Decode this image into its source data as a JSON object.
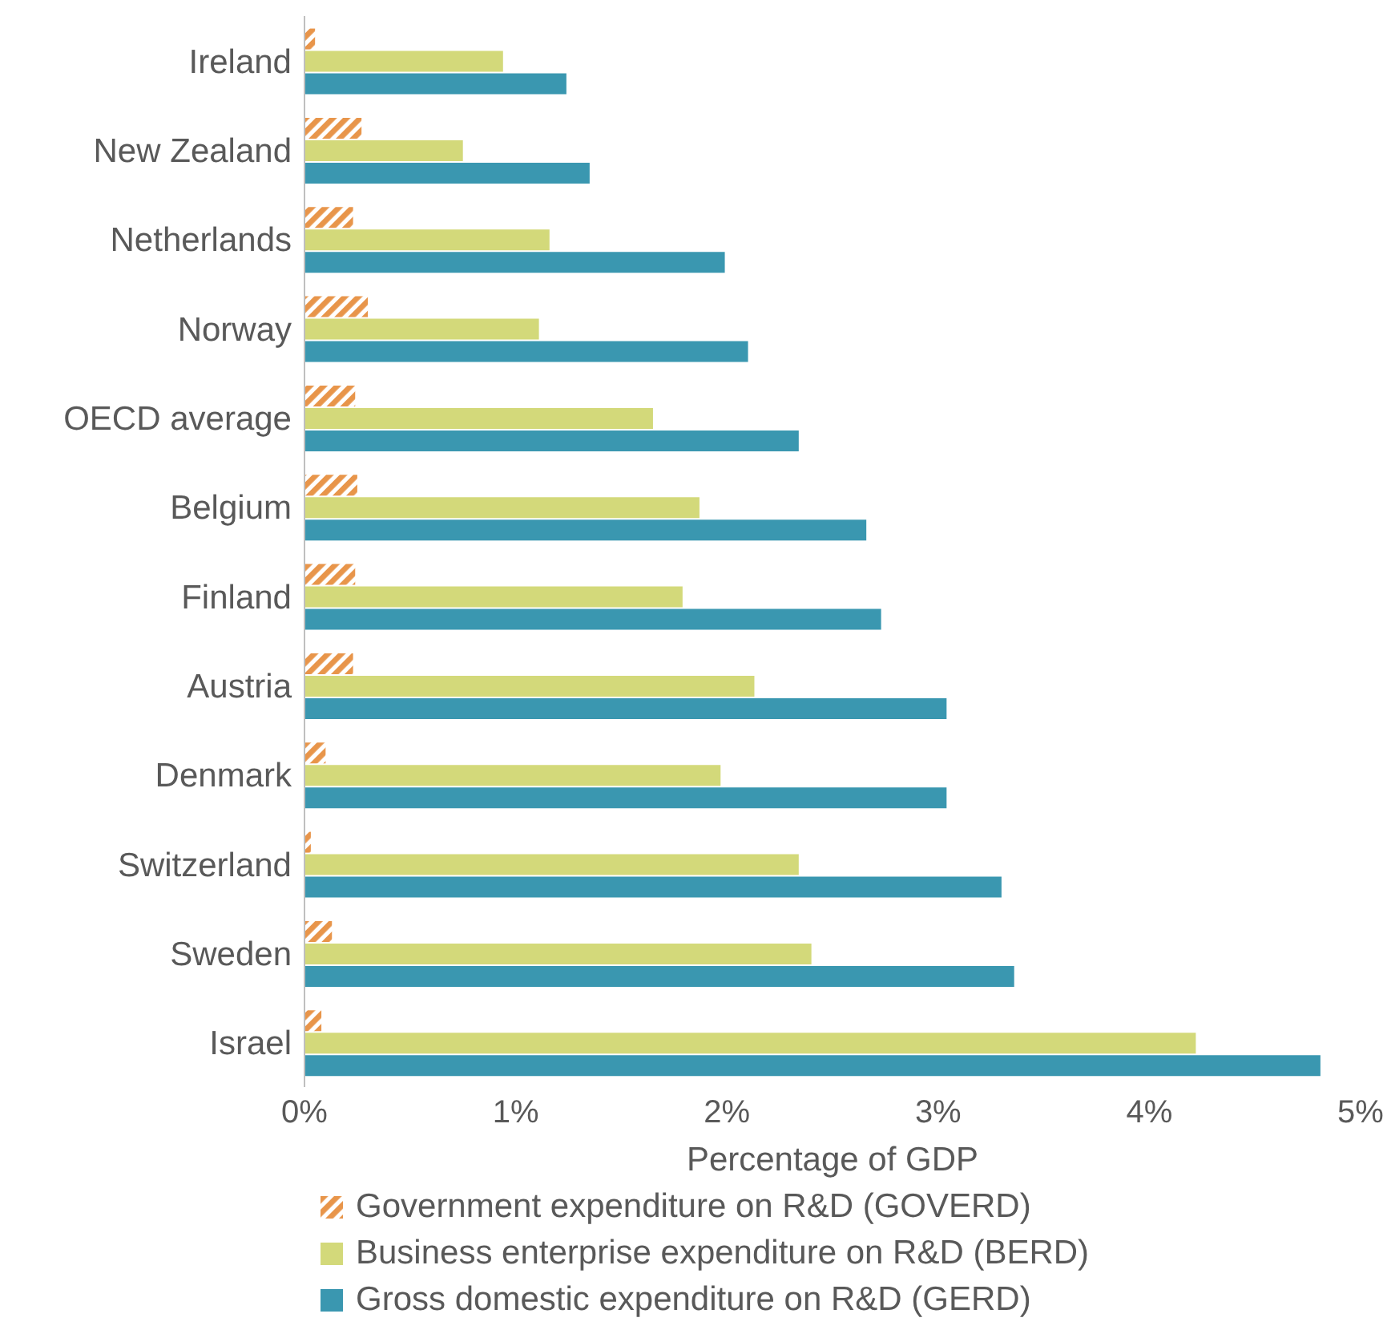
{
  "chart_data": {
    "type": "bar",
    "orientation": "horizontal",
    "categories": [
      "Ireland",
      "New Zealand",
      "Netherlands",
      "Norway",
      "OECD average",
      "Belgium",
      "Finland",
      "Austria",
      "Denmark",
      "Switzerland",
      "Sweden",
      "Israel"
    ],
    "series": [
      {
        "name": "Government expenditure on R&D (GOVERD)",
        "color": "#e8954a",
        "values": [
          0.05,
          0.27,
          0.23,
          0.3,
          0.24,
          0.25,
          0.24,
          0.23,
          0.1,
          0.03,
          0.13,
          0.08
        ]
      },
      {
        "name": "Business enterprise expenditure on R&D (BERD)",
        "color": "#d3d97a",
        "values": [
          0.94,
          0.75,
          1.16,
          1.11,
          1.65,
          1.87,
          1.79,
          2.13,
          1.97,
          2.34,
          2.4,
          4.22
        ]
      },
      {
        "name": "Gross domestic expenditure on R&D (GERD)",
        "color": "#3a97b0",
        "values": [
          1.24,
          1.35,
          1.99,
          2.1,
          2.34,
          2.66,
          2.73,
          3.04,
          3.04,
          3.3,
          3.36,
          4.81
        ]
      }
    ],
    "xlabel": "Percentage of GDP",
    "xlim": [
      0,
      5
    ],
    "xticks": [
      {
        "value": 0,
        "label": "0%"
      },
      {
        "value": 1,
        "label": "1%"
      },
      {
        "value": 2,
        "label": "2%"
      },
      {
        "value": 3,
        "label": "3%"
      },
      {
        "value": 4,
        "label": "4%"
      },
      {
        "value": 5,
        "label": "5%"
      }
    ],
    "grid": false,
    "legend": "bottom"
  }
}
